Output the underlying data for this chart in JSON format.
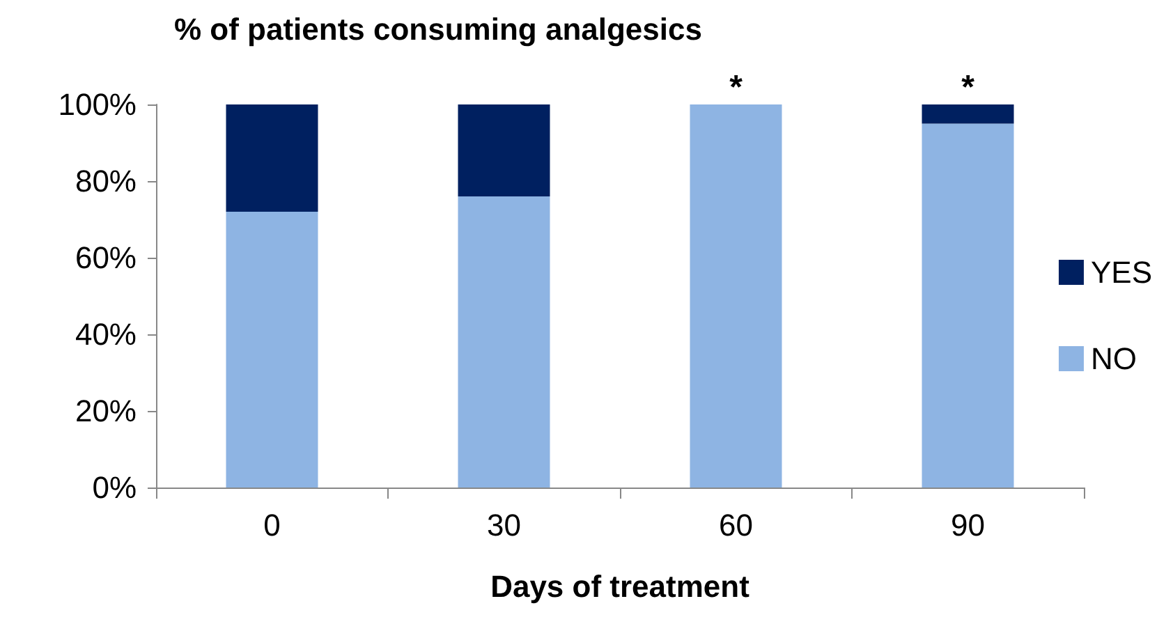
{
  "chart_data": {
    "type": "bar",
    "title": "% of patients consuming analgesics",
    "xlabel": "Days of treatment",
    "categories": [
      "0",
      "30",
      "60",
      "90"
    ],
    "series": [
      {
        "name": "NO",
        "color": "#8eb4e3",
        "values": [
          72,
          76,
          100,
          95
        ]
      },
      {
        "name": "YES",
        "color": "#002060",
        "values": [
          28,
          24,
          0,
          5
        ]
      }
    ],
    "stacked": true,
    "ylim": [
      0,
      100
    ],
    "yticks": [
      {
        "value": 0,
        "label": "0%"
      },
      {
        "value": 20,
        "label": "20%"
      },
      {
        "value": 40,
        "label": "40%"
      },
      {
        "value": 60,
        "label": "60%"
      },
      {
        "value": 80,
        "label": "80%"
      },
      {
        "value": 100,
        "label": "100%"
      }
    ],
    "annotations": [
      {
        "text": "*",
        "x": "60",
        "y": 100
      },
      {
        "text": "*",
        "x": "90",
        "y": 100
      }
    ],
    "legend": "right",
    "grid": false
  }
}
